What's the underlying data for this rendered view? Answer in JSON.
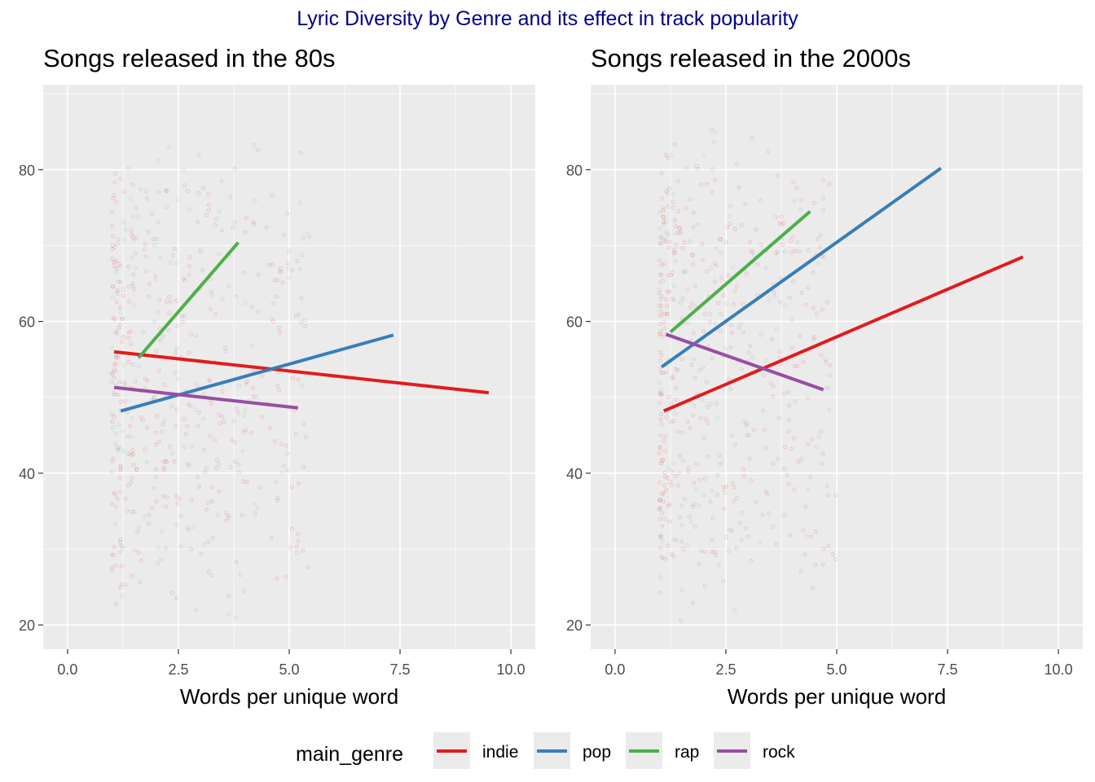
{
  "main_title": "Lyric Diversity by Genre and its effect in track popularity",
  "main_title_color": "#00008B",
  "panel_background": "#EBEBEB",
  "grid_color": "#FFFFFF",
  "legend": {
    "title": "main_genre",
    "items": [
      {
        "label": "indie",
        "color": "#E41A1C"
      },
      {
        "label": "pop",
        "color": "#377EB8"
      },
      {
        "label": "rap",
        "color": "#4DAF4A"
      },
      {
        "label": "rock",
        "color": "#984EA3"
      }
    ]
  },
  "chart_data": [
    {
      "type": "scatter",
      "title": "Songs released in the 80s",
      "xlabel": "Words per unique word",
      "ylabel": "",
      "xlim": [
        -0.55,
        10.55
      ],
      "ylim": [
        16.8,
        91.2
      ],
      "x_ticks": [
        "0.0",
        "2.5",
        "5.0",
        "7.5",
        "10.0"
      ],
      "x_tick_values": [
        0,
        2.5,
        5,
        7.5,
        10
      ],
      "y_ticks": [
        "20",
        "40",
        "60",
        "80"
      ],
      "y_tick_values": [
        20,
        40,
        60,
        80
      ],
      "grid": true,
      "series": [
        {
          "name": "indie",
          "color": "#E41A1C",
          "trend": [
            [
              1.05,
              56.0
            ],
            [
              9.5,
              50.6
            ]
          ]
        },
        {
          "name": "pop",
          "color": "#377EB8",
          "trend": [
            [
              1.2,
              48.2
            ],
            [
              7.35,
              58.2
            ]
          ]
        },
        {
          "name": "rap",
          "color": "#4DAF4A",
          "trend": [
            [
              1.6,
              55.2
            ],
            [
              3.85,
              70.4
            ]
          ]
        },
        {
          "name": "rock",
          "color": "#984EA3",
          "trend": [
            [
              1.05,
              51.3
            ],
            [
              5.2,
              48.6
            ]
          ]
        }
      ],
      "points_note": "",
      "scatter_extent": {
        "x": [
          1.0,
          5.5
        ],
        "y": [
          20,
          86
        ]
      }
    },
    {
      "type": "scatter",
      "title": "Songs released in the 2000s",
      "xlabel": "Words per unique word",
      "ylabel": "",
      "xlim": [
        -0.55,
        10.55
      ],
      "ylim": [
        16.8,
        91.2
      ],
      "x_ticks": [
        "0.0",
        "2.5",
        "5.0",
        "7.5",
        "10.0"
      ],
      "x_tick_values": [
        0,
        2.5,
        5,
        7.5,
        10
      ],
      "y_ticks": [
        "20",
        "40",
        "60",
        "80"
      ],
      "y_tick_values": [
        20,
        40,
        60,
        80
      ],
      "grid": true,
      "series": [
        {
          "name": "indie",
          "color": "#E41A1C",
          "trend": [
            [
              1.1,
              48.2
            ],
            [
              9.2,
              68.5
            ]
          ]
        },
        {
          "name": "pop",
          "color": "#377EB8",
          "trend": [
            [
              1.05,
              54.0
            ],
            [
              7.35,
              80.2
            ]
          ]
        },
        {
          "name": "rap",
          "color": "#4DAF4A",
          "trend": [
            [
              1.25,
              58.6
            ],
            [
              4.4,
              74.5
            ]
          ]
        },
        {
          "name": "rock",
          "color": "#984EA3",
          "trend": [
            [
              1.15,
              58.3
            ],
            [
              4.7,
              51.0
            ]
          ]
        }
      ],
      "points_note": "",
      "scatter_extent": {
        "x": [
          1.0,
          5.0
        ],
        "y": [
          20,
          86
        ]
      }
    }
  ]
}
